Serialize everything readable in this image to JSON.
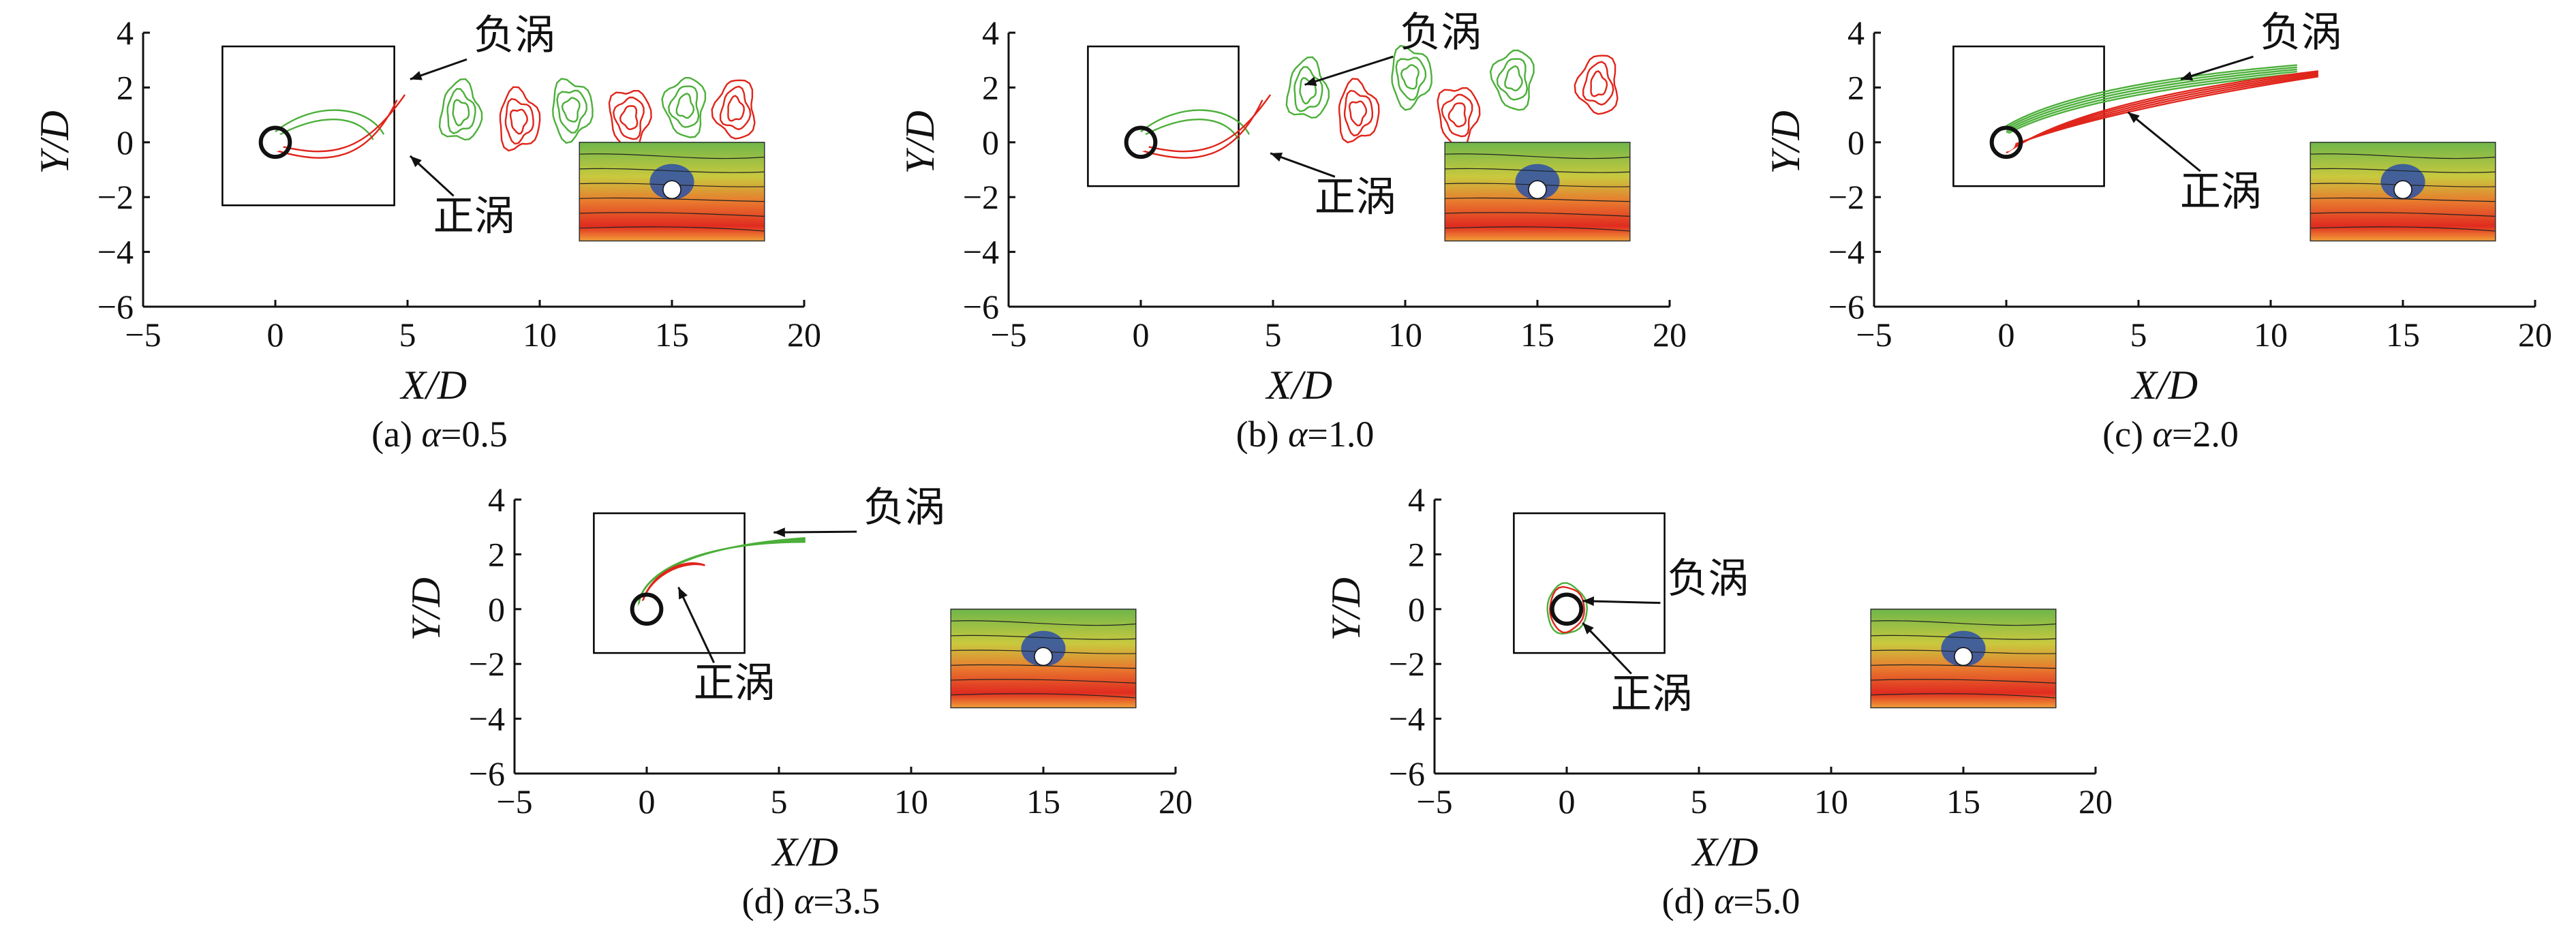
{
  "figure": {
    "colors": {
      "negative_vortex": "#4caf3a",
      "positive_vortex": "#e0251b",
      "axis": "#111111",
      "frame": "#000000"
    },
    "panels": [
      {
        "caption_prefix": "(a) ",
        "caption_symbol": "α",
        "caption_value": "=0.5",
        "xlabel": "X/D",
        "ylabel": "Y/D",
        "xticks": [
          "−5",
          "0",
          "5",
          "10",
          "15",
          "20"
        ],
        "yticks": [
          "4",
          "2",
          "0",
          "−2",
          "−4",
          "−6"
        ],
        "neg_label": "负涡",
        "pos_label": "正涡",
        "xlim": [
          -5,
          20
        ],
        "ylim": [
          -6,
          4
        ],
        "wake": "long"
      },
      {
        "caption_prefix": "(b) ",
        "caption_symbol": "α",
        "caption_value": "=1.0",
        "xlabel": "X/D",
        "ylabel": "Y/D",
        "xticks": [
          "−5",
          "0",
          "5",
          "10",
          "15",
          "20"
        ],
        "yticks": [
          "4",
          "2",
          "0",
          "−2",
          "−4",
          "−6"
        ],
        "neg_label": "负涡",
        "pos_label": "正涡",
        "xlim": [
          -5,
          20
        ],
        "ylim": [
          -6,
          4
        ],
        "wake": "long"
      },
      {
        "caption_prefix": "(c) ",
        "caption_symbol": "α",
        "caption_value": "=2.0",
        "xlabel": "X/D",
        "ylabel": "Y/D",
        "xticks": [
          "−5",
          "0",
          "5",
          "10",
          "15",
          "20"
        ],
        "yticks": [
          "4",
          "2",
          "0",
          "−2",
          "−4",
          "−6"
        ],
        "neg_label": "负涡",
        "pos_label": "正涡",
        "xlim": [
          -5,
          20
        ],
        "ylim": [
          -6,
          4
        ],
        "wake": "streak"
      },
      {
        "caption_prefix": "(d) ",
        "caption_symbol": "α",
        "caption_value": "=3.5",
        "xlabel": "X/D",
        "ylabel": "Y/D",
        "xticks": [
          "−5",
          "0",
          "5",
          "10",
          "15",
          "20"
        ],
        "yticks": [
          "4",
          "2",
          "0",
          "−2",
          "−4",
          "−6"
        ],
        "neg_label": "负涡",
        "pos_label": "正涡",
        "xlim": [
          -5,
          20
        ],
        "ylim": [
          -6,
          4
        ],
        "wake": "short"
      },
      {
        "caption_prefix": "(d) ",
        "caption_symbol": "α",
        "caption_value": "=5.0",
        "xlabel": "X/D",
        "ylabel": "Y/D",
        "xticks": [
          "−5",
          "0",
          "5",
          "10",
          "15",
          "20"
        ],
        "yticks": [
          "4",
          "2",
          "0",
          "−2",
          "−4",
          "−6"
        ],
        "neg_label": "负涡",
        "pos_label": "正涡",
        "xlim": [
          -5,
          20
        ],
        "ylim": [
          -6,
          4
        ],
        "wake": "none"
      }
    ]
  }
}
